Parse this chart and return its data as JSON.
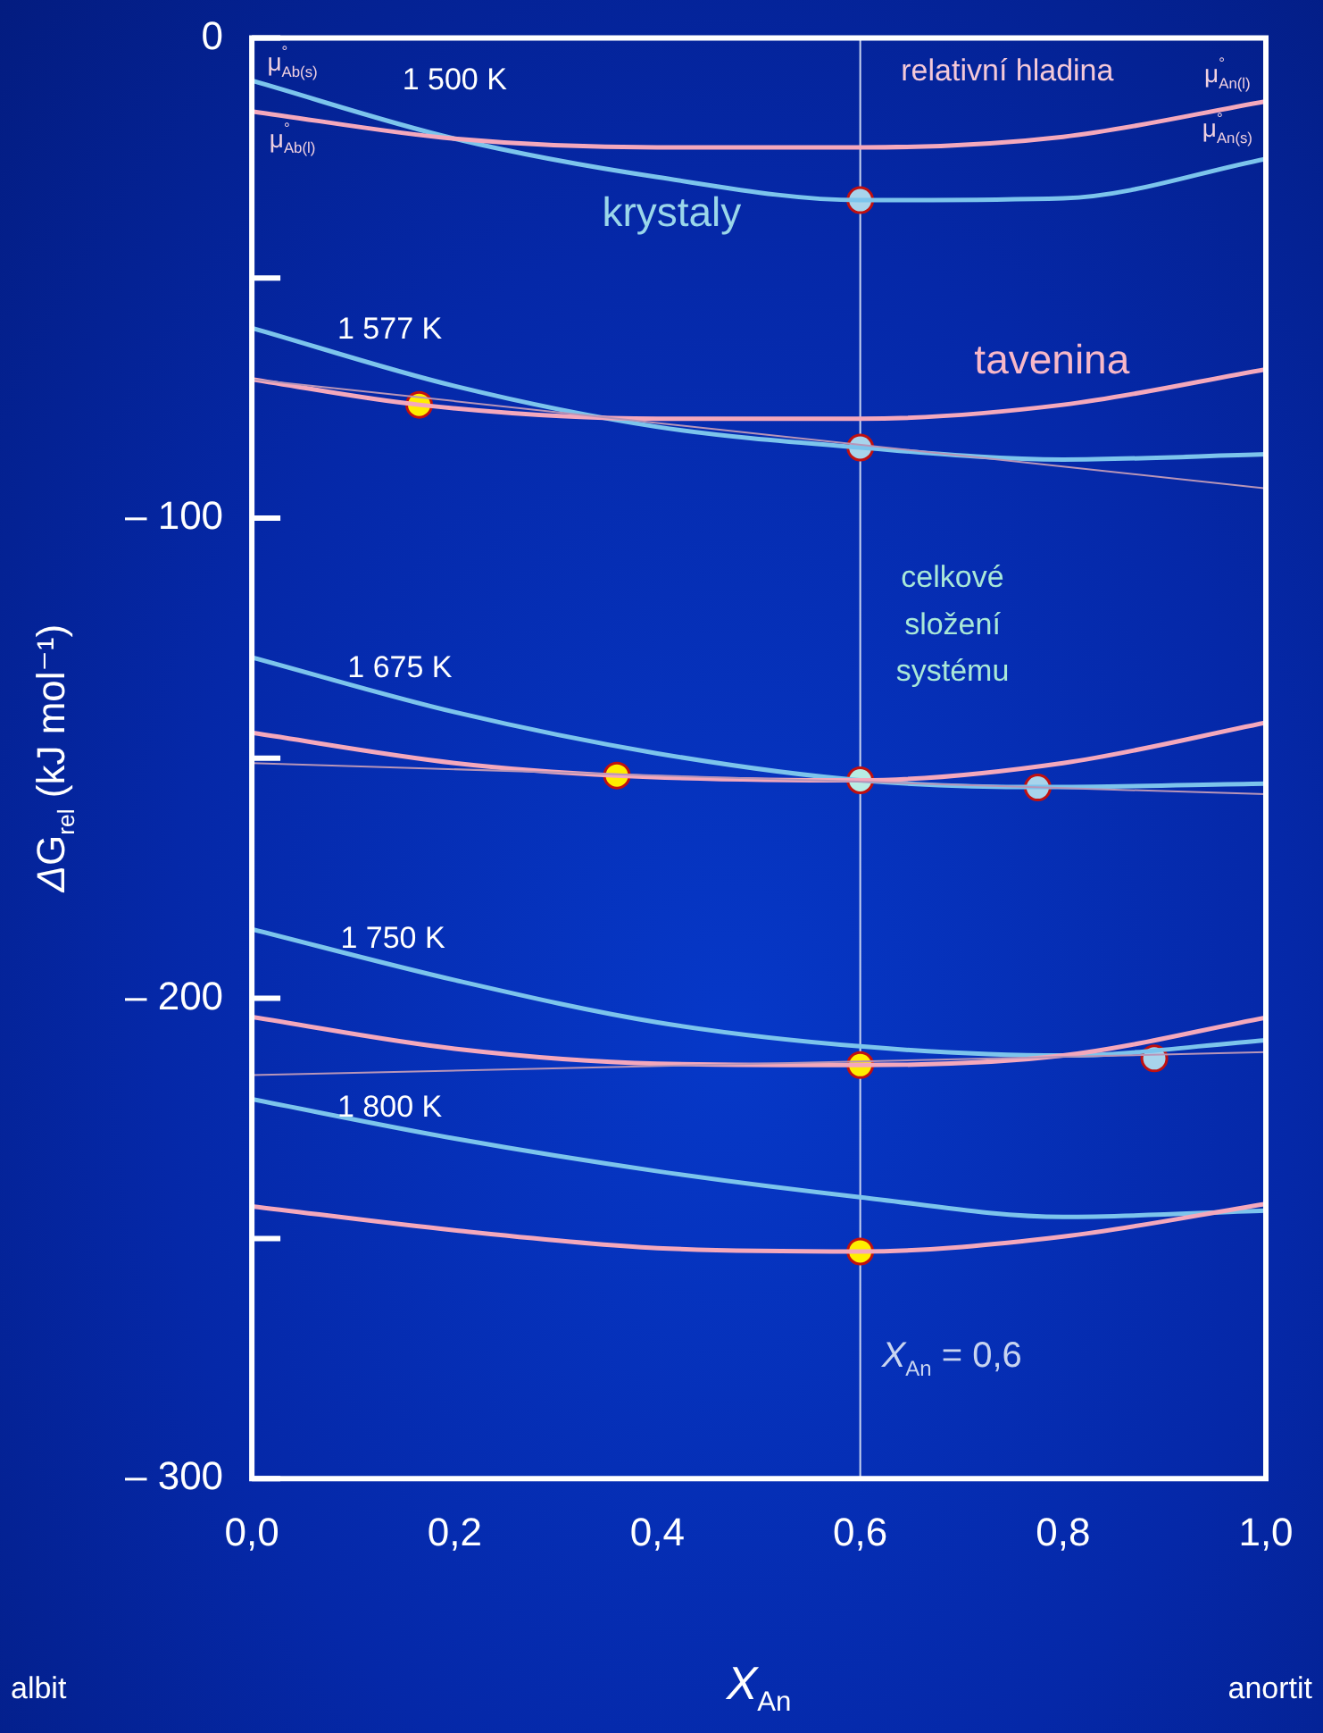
{
  "chart_data": {
    "type": "line",
    "xlabel": "X$_{An}$",
    "ylabel": "ΔG$_{rel}$ (kJ mol⁻¹)",
    "xlim": [
      0,
      1
    ],
    "ylim": [
      -300,
      0
    ],
    "xticks": [
      {
        "value": 0,
        "label": "0,0"
      },
      {
        "value": 0.2,
        "label": "0,2"
      },
      {
        "value": 0.4,
        "label": "0,4"
      },
      {
        "value": 0.6,
        "label": "0,6"
      },
      {
        "value": 0.8,
        "label": "0,8"
      },
      {
        "value": 1,
        "label": "1,0"
      }
    ],
    "yticks": [
      {
        "value": 0,
        "label": "0"
      },
      {
        "value": -50,
        "label": null
      },
      {
        "value": -100,
        "label": "– 100"
      },
      {
        "value": -150,
        "label": null
      },
      {
        "value": -200,
        "label": "– 200"
      },
      {
        "value": -250,
        "label": null
      },
      {
        "value": -300,
        "label": "– 300"
      }
    ],
    "grid": false,
    "legend": false,
    "series": [
      {
        "type": "line",
        "color": "#f4a8bc",
        "x": [
          0,
          0.2,
          0.4,
          0.6,
          0.8,
          1
        ],
        "values": [
          -15.3,
          -21,
          -22.8,
          -22.8,
          -20.6,
          -13.2
        ]
      },
      {
        "type": "line",
        "color": "#7cc4ec",
        "x": [
          0,
          0.2,
          0.4,
          0.6,
          0.8,
          1
        ],
        "values": [
          -8.9,
          -21,
          -29,
          -33.8,
          -33.4,
          -25.2
        ]
      },
      {
        "type": "line",
        "color": "#b895b8",
        "x": [
          0,
          1
        ],
        "values": [
          -71.1,
          -93.8
        ]
      },
      {
        "type": "line",
        "color": "#f4a8bc",
        "x": [
          0,
          0.165,
          0.4,
          0.6,
          0.8,
          1
        ],
        "values": [
          -71.1,
          -76.4,
          -79.3,
          -79.3,
          -76.4,
          -69
        ]
      },
      {
        "type": "line",
        "color": "#7cc4ec",
        "x": [
          0,
          0.2,
          0.4,
          0.6,
          0.8,
          1
        ],
        "values": [
          -60.4,
          -72.5,
          -81,
          -85.3,
          -87.8,
          -86.7
        ]
      },
      {
        "type": "line",
        "color": "#b895b8",
        "x": [
          0,
          1
        ],
        "values": [
          -151,
          -157.5
        ]
      },
      {
        "type": "line",
        "color": "#f4a8bc",
        "x": [
          0,
          0.2,
          0.36,
          0.6,
          0.8,
          1
        ],
        "values": [
          -144.7,
          -151,
          -153.6,
          -154.6,
          -151,
          -142.6
        ]
      },
      {
        "type": "line",
        "color": "#7cc4ec",
        "x": [
          0,
          0.2,
          0.4,
          0.6,
          0.78,
          1
        ],
        "values": [
          -129,
          -140.4,
          -149,
          -154.6,
          -156,
          -155.3
        ]
      },
      {
        "type": "line",
        "color": "#b895b8",
        "x": [
          0,
          1
        ],
        "values": [
          -216,
          -211.2
        ]
      },
      {
        "type": "line",
        "color": "#f4a8bc",
        "x": [
          0,
          0.2,
          0.4,
          0.6,
          0.8,
          1
        ],
        "values": [
          -203.9,
          -210.5,
          -213.6,
          -213.9,
          -211.9,
          -204
        ]
      },
      {
        "type": "line",
        "color": "#7cc4ec",
        "x": [
          0,
          0.2,
          0.4,
          0.6,
          0.8,
          1
        ],
        "values": [
          -185.6,
          -196.2,
          -205,
          -210,
          -211.9,
          -208.7
        ]
      },
      {
        "type": "line",
        "color": "#f4a8bc",
        "x": [
          0,
          0.2,
          0.4,
          0.6,
          0.8,
          1
        ],
        "values": [
          -243.3,
          -248.3,
          -252,
          -252.7,
          -249.6,
          -242.8
        ]
      },
      {
        "type": "line",
        "color": "#7cc4ec",
        "x": [
          0,
          0.2,
          0.4,
          0.6,
          0.8,
          1
        ],
        "values": [
          -221,
          -229.2,
          -236,
          -241.4,
          -245.5,
          -244.2
        ]
      },
      {
        "type": "scatter",
        "marker": "circle",
        "color": "#ffee00",
        "x": [
          0.165,
          0.36,
          0.6,
          0.6
        ],
        "values": [
          -76.4,
          -153.6,
          -213.9,
          -252.7
        ]
      },
      {
        "type": "scatter",
        "marker": "circle",
        "color": "#a8d4ec",
        "x": [
          0.6,
          0.6,
          0.775,
          0.89
        ],
        "values": [
          -33.8,
          -85.3,
          -156.1,
          -212.5
        ]
      },
      {
        "type": "scatter",
        "marker": "circle",
        "color": "#b8ece4",
        "x": [
          0.6
        ],
        "values": [
          -154.6
        ]
      }
    ],
    "ref_lines": [
      {
        "axis": "x",
        "value": 0.6,
        "label": "X$_{An}$ = 0,6",
        "color": "#c8d4f0"
      }
    ],
    "annotations": [
      "1 500 K",
      "1 577 K",
      "1 675 K",
      "1 750 K",
      "1 800 K",
      "krystaly",
      "tavenina",
      "relativní hladina",
      "celkové\nsložení\nsystému",
      "μ$^{°}$$_{Ab(s)}$",
      "μ$^{°}$$_{Ab(l)}$",
      "μ$^{°}$$_{An(l)}$",
      "μ$^{°}$$_{An(s)}$",
      "albit",
      "anortit"
    ]
  }
}
